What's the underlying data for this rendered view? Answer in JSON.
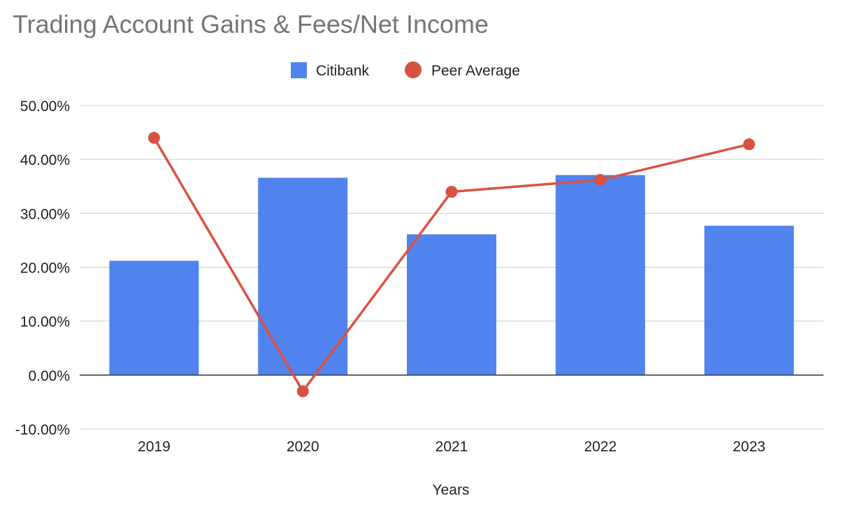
{
  "colors": {
    "citibank": "#5083ED",
    "peer_average": "#D95241",
    "gridline": "#CCCCCC",
    "zero_line": "#333333"
  },
  "chart_data": {
    "type": "bar",
    "title": "Trading Account Gains & Fees/Net Income",
    "xlabel": "Years",
    "ylabel": "",
    "categories": [
      "2019",
      "2020",
      "2021",
      "2022",
      "2023"
    ],
    "ylim": [
      -10,
      50
    ],
    "yticks": [
      50,
      40,
      30,
      20,
      10,
      0,
      -10
    ],
    "ytick_labels": [
      "50.00%",
      "40.00%",
      "30.00%",
      "20.00%",
      "10.00%",
      "0.00%",
      "-10.00%"
    ],
    "grid": true,
    "legend_position": "top",
    "series": [
      {
        "name": "Citibank",
        "type": "bar",
        "values": [
          21.2,
          36.6,
          26.1,
          37.1,
          27.7
        ]
      },
      {
        "name": "Peer Average",
        "type": "line",
        "values": [
          44.0,
          -3.0,
          34.0,
          36.2,
          42.8
        ]
      }
    ]
  }
}
